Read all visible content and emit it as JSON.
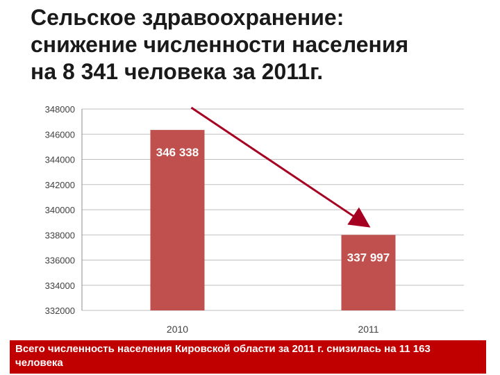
{
  "slide": {
    "title_lines": [
      "Сельское здравоохранение:",
      "снижение численности населения",
      "на 8 341 человека за 2011г."
    ],
    "footer_note": "Всего численность населения Кировской области за 2011 г. снизилась на 11 163 человека"
  },
  "colors": {
    "bar": "#c0504d",
    "arrow": "#a50021",
    "footer_bg": "#c00000",
    "grid": "#bfbfbf"
  },
  "chart_data": {
    "type": "bar",
    "title": "",
    "xlabel": "",
    "ylabel": "",
    "categories": [
      "2010",
      "2011"
    ],
    "values": [
      346338,
      337997
    ],
    "data_labels": [
      "346 338",
      "337 997"
    ],
    "ylim": [
      332000,
      348000
    ],
    "yticks": [
      332000,
      334000,
      336000,
      338000,
      340000,
      342000,
      344000,
      346000,
      348000
    ],
    "ytick_labels": [
      "332000",
      "334000",
      "336000",
      "338000",
      "340000",
      "342000",
      "344000",
      "346000",
      "348000"
    ],
    "grid": true,
    "legend": "none",
    "annotation": "downward arrow from 2010 bar to 2011 bar"
  }
}
